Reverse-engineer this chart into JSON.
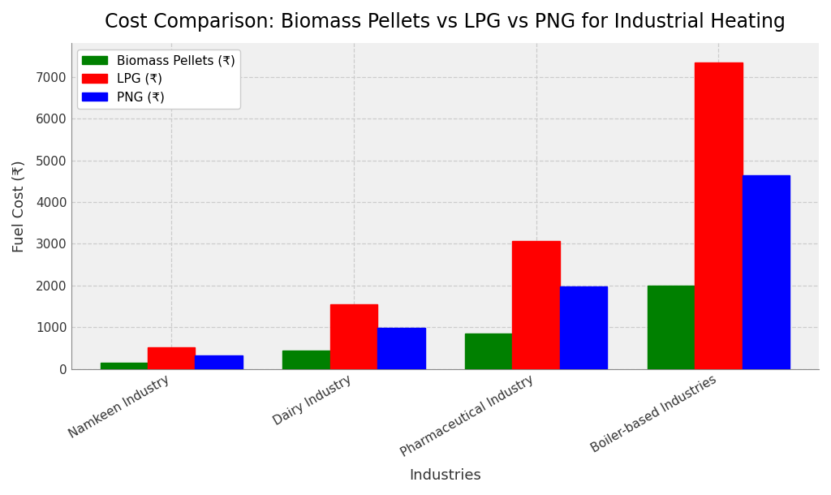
{
  "title": "Cost Comparison: Biomass Pellets vs LPG vs PNG for Industrial Heating",
  "xlabel": "Industries",
  "ylabel": "Fuel Cost (₹)",
  "categories": [
    "Namkeen Industry",
    "Dairy Industry",
    "Pharmaceutical Industry",
    "Boiler-based Industries"
  ],
  "series": [
    {
      "label": "Biomass Pellets (₹)",
      "color": "#008000",
      "values": [
        150,
        450,
        850,
        2000
      ]
    },
    {
      "label": "LPG (₹)",
      "color": "#ff0000",
      "values": [
        530,
        1550,
        3075,
        7350
      ]
    },
    {
      "label": "PNG (₹)",
      "color": "#0000ff",
      "values": [
        330,
        990,
        1975,
        4650
      ]
    }
  ],
  "ylim": [
    0,
    7800
  ],
  "yticks": [
    0,
    1000,
    2000,
    3000,
    4000,
    5000,
    6000,
    7000
  ],
  "bar_width": 0.26,
  "background_color": "#ffffff",
  "axes_bg_color": "#f0f0f0",
  "grid_color": "#cccccc",
  "title_fontsize": 17,
  "axis_label_fontsize": 13,
  "tick_fontsize": 11,
  "legend_fontsize": 11
}
